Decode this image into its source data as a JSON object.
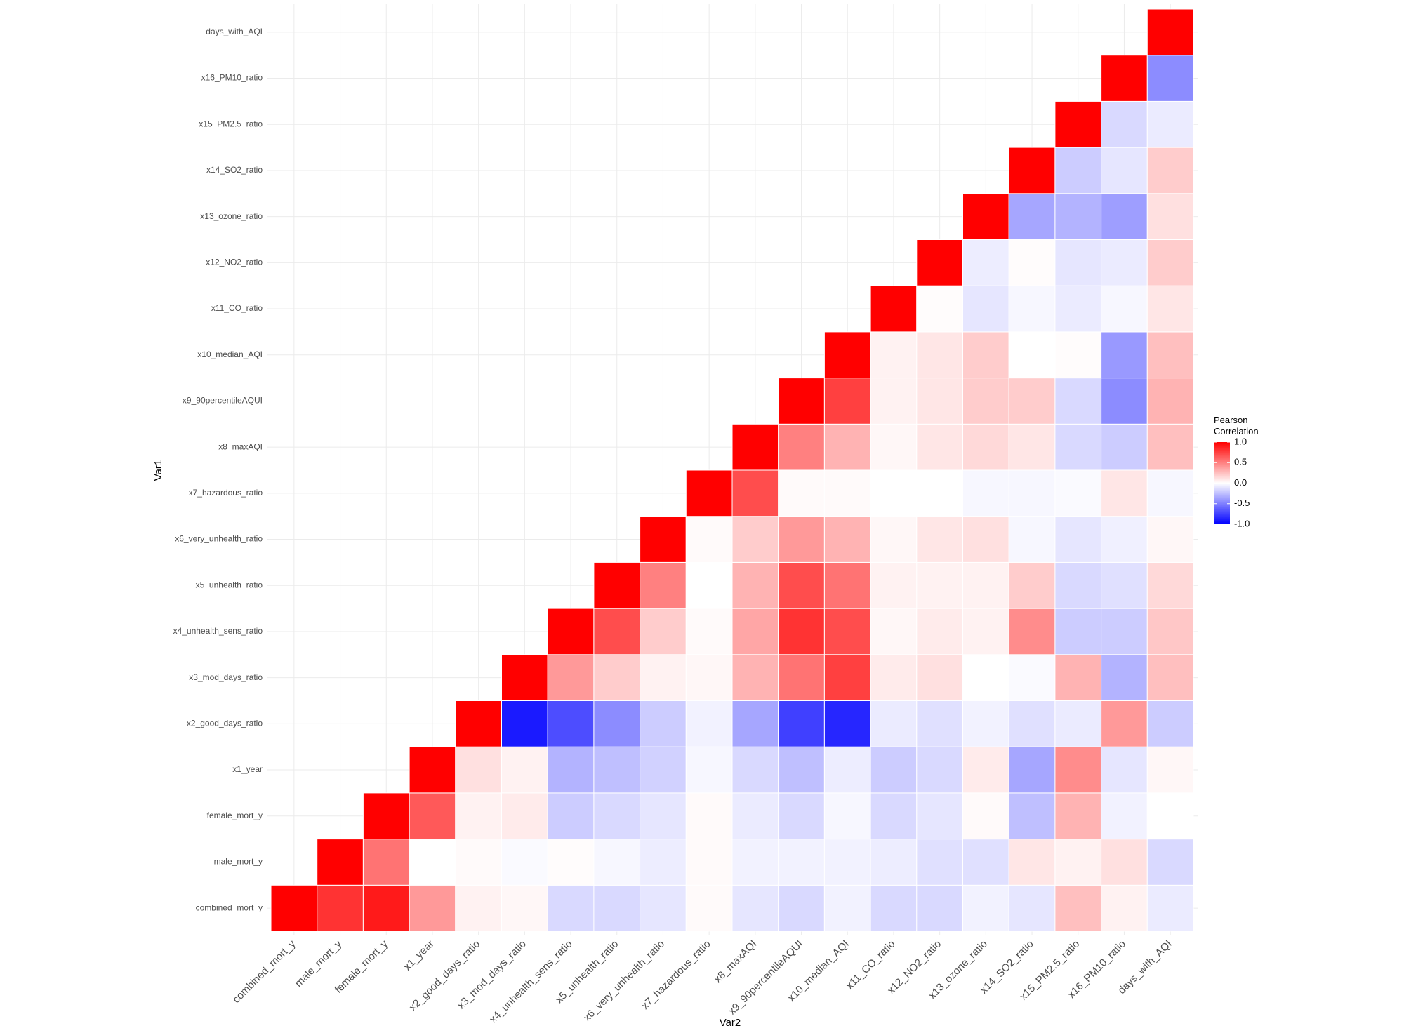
{
  "chart_data": {
    "type": "heatmap",
    "x_label": "Var2",
    "y_label": "Var1",
    "categories": [
      "combined_mort_y",
      "male_mort_y",
      "female_mort_y",
      "x1_year",
      "x2_good_days_ratio",
      "x3_mod_days_ratio",
      "x4_unhealth_sens_ratio",
      "x5_unhealth_ratio",
      "x6_very_unhealth_ratio",
      "x7_hazardous_ratio",
      "x8_maxAQI",
      "x9_90percentileAQUI",
      "x10_median_AQI",
      "x11_CO_ratio",
      "x12_NO2_ratio",
      "x13_ozone_ratio",
      "x14_SO2_ratio",
      "x15_PM2.5_ratio",
      "x16_PM10_ratio",
      "days_with_AQI"
    ],
    "values": [
      [
        1,
        0.8,
        0.9,
        0.4,
        0.05,
        0.03,
        -0.15,
        -0.15,
        -0.1,
        0.02,
        -0.1,
        -0.15,
        -0.05,
        -0.15,
        -0.15,
        -0.05,
        -0.1,
        0.25,
        0.05,
        -0.08
      ],
      [
        null,
        1,
        0.55,
        0.0,
        0.02,
        -0.02,
        0.01,
        -0.03,
        -0.07,
        0.02,
        -0.05,
        -0.05,
        -0.05,
        -0.07,
        -0.12,
        -0.12,
        0.1,
        0.05,
        0.12,
        -0.15
      ],
      [
        null,
        null,
        1,
        0.65,
        0.05,
        0.08,
        -0.2,
        -0.15,
        -0.1,
        0.02,
        -0.08,
        -0.15,
        -0.03,
        -0.15,
        -0.1,
        0.02,
        -0.25,
        0.3,
        -0.05,
        0.0
      ],
      [
        null,
        null,
        null,
        1,
        0.12,
        0.05,
        -0.3,
        -0.25,
        -0.18,
        -0.03,
        -0.15,
        -0.25,
        -0.07,
        -0.2,
        -0.15,
        0.08,
        -0.35,
        0.45,
        -0.1,
        0.03
      ],
      [
        null,
        null,
        null,
        null,
        1,
        -0.9,
        -0.7,
        -0.45,
        -0.2,
        -0.05,
        -0.35,
        -0.75,
        -0.85,
        -0.08,
        -0.12,
        -0.05,
        -0.12,
        -0.08,
        0.4,
        -0.2
      ],
      [
        null,
        null,
        null,
        null,
        null,
        1,
        0.4,
        0.2,
        0.05,
        0.03,
        0.3,
        0.55,
        0.75,
        0.08,
        0.12,
        0.0,
        -0.02,
        0.3,
        -0.3,
        0.25
      ],
      [
        null,
        null,
        null,
        null,
        null,
        null,
        1,
        0.7,
        0.2,
        0.02,
        0.35,
        0.8,
        0.7,
        0.03,
        0.08,
        0.05,
        0.45,
        -0.2,
        -0.2,
        0.22
      ],
      [
        null,
        null,
        null,
        null,
        null,
        null,
        null,
        1,
        0.5,
        0.0,
        0.3,
        0.7,
        0.55,
        0.05,
        0.05,
        0.05,
        0.2,
        -0.15,
        -0.12,
        0.15
      ],
      [
        null,
        null,
        null,
        null,
        null,
        null,
        null,
        null,
        1,
        0.02,
        0.2,
        0.4,
        0.3,
        0.03,
        0.1,
        0.12,
        -0.03,
        -0.1,
        -0.06,
        0.03
      ],
      [
        null,
        null,
        null,
        null,
        null,
        null,
        null,
        null,
        null,
        1,
        0.7,
        0.02,
        0.02,
        0.0,
        0.0,
        -0.03,
        -0.03,
        -0.02,
        0.1,
        -0.03
      ],
      [
        null,
        null,
        null,
        null,
        null,
        null,
        null,
        null,
        null,
        null,
        1,
        0.5,
        0.3,
        0.03,
        0.1,
        0.15,
        0.1,
        -0.15,
        -0.2,
        0.25
      ],
      [
        null,
        null,
        null,
        null,
        null,
        null,
        null,
        null,
        null,
        null,
        null,
        1,
        0.75,
        0.05,
        0.1,
        0.2,
        0.2,
        -0.15,
        -0.45,
        0.3
      ],
      [
        null,
        null,
        null,
        null,
        null,
        null,
        null,
        null,
        null,
        null,
        null,
        null,
        1,
        0.05,
        0.1,
        0.2,
        0.0,
        0.01,
        -0.4,
        0.25
      ],
      [
        null,
        null,
        null,
        null,
        null,
        null,
        null,
        null,
        null,
        null,
        null,
        null,
        null,
        1,
        0.01,
        -0.1,
        -0.03,
        -0.08,
        -0.03,
        0.1
      ],
      [
        null,
        null,
        null,
        null,
        null,
        null,
        null,
        null,
        null,
        null,
        null,
        null,
        null,
        null,
        1,
        -0.07,
        0.01,
        -0.1,
        -0.08,
        0.2
      ],
      [
        null,
        null,
        null,
        null,
        null,
        null,
        null,
        null,
        null,
        null,
        null,
        null,
        null,
        null,
        null,
        1,
        -0.35,
        -0.3,
        -0.38,
        0.12
      ],
      [
        null,
        null,
        null,
        null,
        null,
        null,
        null,
        null,
        null,
        null,
        null,
        null,
        null,
        null,
        null,
        null,
        1,
        -0.2,
        -0.1,
        0.2
      ],
      [
        null,
        null,
        null,
        null,
        null,
        null,
        null,
        null,
        null,
        null,
        null,
        null,
        null,
        null,
        null,
        null,
        null,
        1,
        -0.15,
        -0.08
      ],
      [
        null,
        null,
        null,
        null,
        null,
        null,
        null,
        null,
        null,
        null,
        null,
        null,
        null,
        null,
        null,
        null,
        null,
        null,
        1,
        -0.45
      ],
      [
        null,
        null,
        null,
        null,
        null,
        null,
        null,
        null,
        null,
        null,
        null,
        null,
        null,
        null,
        null,
        null,
        null,
        null,
        null,
        1
      ]
    ],
    "colorscale": {
      "low": "#0000ff",
      "mid": "#ffffff",
      "high": "#ff0000"
    },
    "zlim": [
      -1,
      1
    ],
    "legend_title": [
      "Pearson",
      "Correlation"
    ],
    "legend_ticks": [
      {
        "value": 1,
        "label": "1.0"
      },
      {
        "value": 0.5,
        "label": "0.5"
      },
      {
        "value": 0,
        "label": "0.0"
      },
      {
        "value": -0.5,
        "label": "-0.5"
      },
      {
        "value": -1,
        "label": "-1.0"
      }
    ],
    "grid": true
  }
}
